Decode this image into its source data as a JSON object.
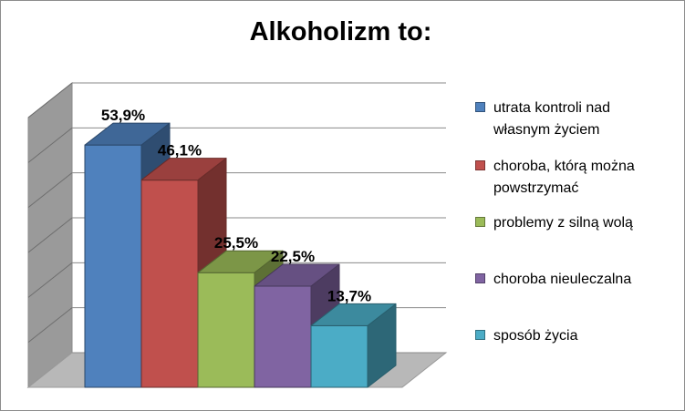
{
  "chart_data": {
    "type": "bar",
    "title": "Alkoholizm to:",
    "xlabel": "",
    "ylabel": "",
    "ylim": [
      0,
      60
    ],
    "grid": true,
    "legend_position": "right",
    "three_d": true,
    "categories": [
      "utrata kontroli nad własnym życiem",
      "choroba, którą można powstrzymać",
      "problemy z silną wolą",
      "choroba nieuleczalna",
      "sposób życia"
    ],
    "legend_lines": [
      [
        "utrata kontroli nad",
        "własnym życiem"
      ],
      [
        "choroba, którą można",
        "powstrzymać"
      ],
      [
        "problemy z silną wolą"
      ],
      [
        "choroba nieuleczalna"
      ],
      [
        "sposób życia"
      ]
    ],
    "values": [
      53.9,
      46.1,
      25.5,
      22.5,
      13.7
    ],
    "data_labels": [
      "53,9%",
      "46,1%",
      "25,5%",
      "22,5%",
      "13,7%"
    ],
    "colors": [
      "#4f81bd",
      "#c0504d",
      "#9bbb59",
      "#8064a2",
      "#4bacc6"
    ]
  }
}
